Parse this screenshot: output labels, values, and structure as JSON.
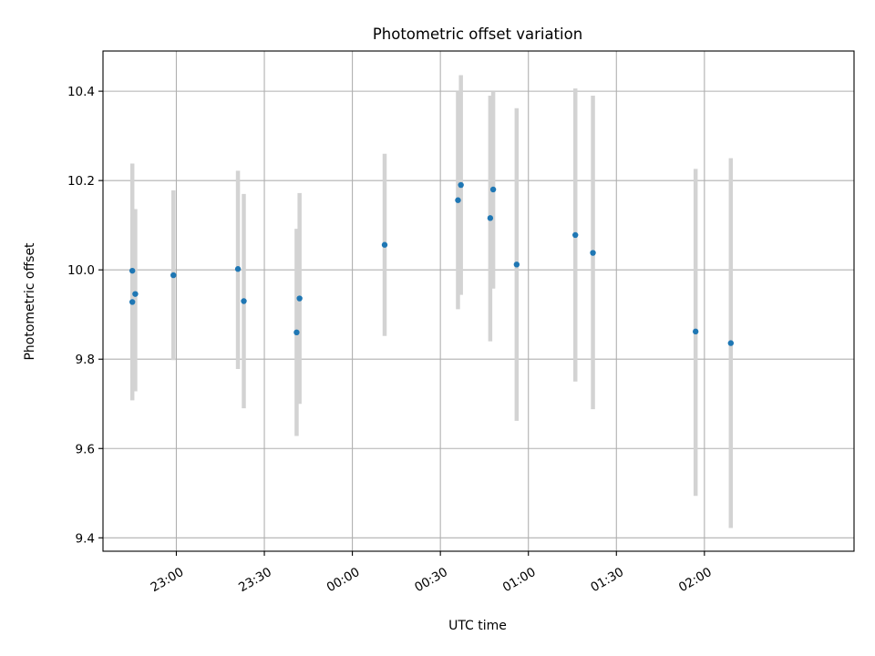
{
  "chart_data": {
    "type": "scatter",
    "title": "Photometric offset variation",
    "xlabel": "UTC time",
    "ylabel": "Photometric offset",
    "x_axis_kind": "time (HH:MM UTC)",
    "xlim": [
      "22:35",
      "02:51"
    ],
    "ylim": [
      9.37,
      10.49
    ],
    "grid": true,
    "legend": "none",
    "x_ticks": [
      "23:00",
      "23:30",
      "00:00",
      "00:30",
      "01:00",
      "01:30",
      "02:00"
    ],
    "y_ticks": [
      9.4,
      9.6,
      9.8,
      10.0,
      10.2,
      10.4
    ],
    "y_tick_labels": [
      "9.4",
      "9.6",
      "9.8",
      "10.0",
      "10.2",
      "10.4"
    ],
    "colors": {
      "point": "#1f77b4",
      "errorbar": "#d3d3d3",
      "grid": "#b0b0b0"
    },
    "points": [
      {
        "t": "22:45",
        "y": 9.998,
        "ylo": 9.758,
        "yhi": 10.238
      },
      {
        "t": "22:45",
        "y": 9.928,
        "ylo": 9.708,
        "yhi": 10.118
      },
      {
        "t": "22:46",
        "y": 9.946,
        "ylo": 9.728,
        "yhi": 10.136
      },
      {
        "t": "22:59",
        "y": 9.988,
        "ylo": 9.798,
        "yhi": 10.178
      },
      {
        "t": "23:21",
        "y": 10.002,
        "ylo": 9.778,
        "yhi": 10.222
      },
      {
        "t": "23:23",
        "y": 9.93,
        "ylo": 9.69,
        "yhi": 10.17
      },
      {
        "t": "23:41",
        "y": 9.86,
        "ylo": 9.628,
        "yhi": 10.092
      },
      {
        "t": "23:42",
        "y": 9.936,
        "ylo": 9.7,
        "yhi": 10.172
      },
      {
        "t": "00:11",
        "y": 10.056,
        "ylo": 9.852,
        "yhi": 10.26
      },
      {
        "t": "00:36",
        "y": 10.156,
        "ylo": 9.912,
        "yhi": 10.4
      },
      {
        "t": "00:37",
        "y": 10.19,
        "ylo": 9.944,
        "yhi": 10.436
      },
      {
        "t": "00:47",
        "y": 10.116,
        "ylo": 9.84,
        "yhi": 10.39
      },
      {
        "t": "00:48",
        "y": 10.18,
        "ylo": 9.958,
        "yhi": 10.4
      },
      {
        "t": "00:56",
        "y": 10.012,
        "ylo": 9.662,
        "yhi": 10.362
      },
      {
        "t": "01:16",
        "y": 10.078,
        "ylo": 9.75,
        "yhi": 10.406
      },
      {
        "t": "01:22",
        "y": 10.038,
        "ylo": 9.688,
        "yhi": 10.39
      },
      {
        "t": "01:57",
        "y": 9.862,
        "ylo": 9.494,
        "yhi": 10.226
      },
      {
        "t": "02:09",
        "y": 9.836,
        "ylo": 9.422,
        "yhi": 10.25
      }
    ]
  }
}
